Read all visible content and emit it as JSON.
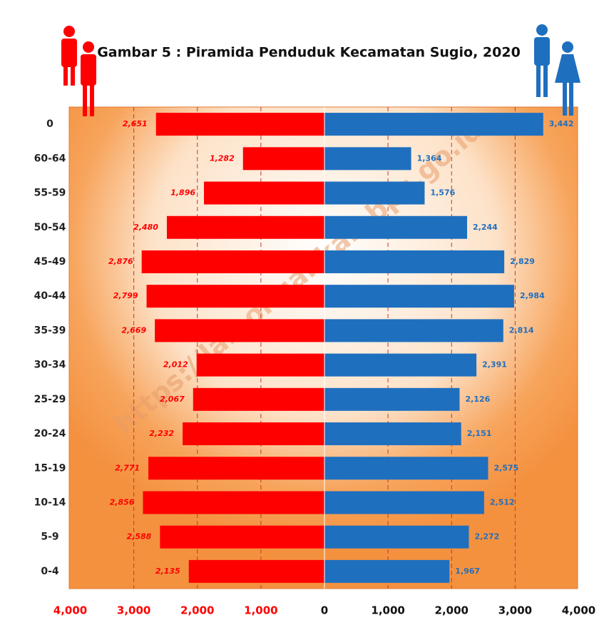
{
  "chart_data": {
    "type": "pyramid",
    "title": "Gambar 5 : Piramida Penduduk Kecamatan Sugio, 2020",
    "watermark": "https://lamongankab.bps.go.id",
    "categories": [
      "0",
      "60-64",
      "55-59",
      "50-54",
      "45-49",
      "40-44",
      "35-39",
      "30-34",
      "25-29",
      "20-24",
      "15-19",
      "10-14",
      "5-9",
      "0-4"
    ],
    "series": [
      {
        "color": "#ff0000",
        "values": [
          2651,
          1282,
          1896,
          2480,
          2876,
          2799,
          2669,
          2012,
          2067,
          2232,
          2771,
          2856,
          2588,
          2135
        ],
        "value_labels": [
          "2,651",
          "1,282",
          "1,896",
          "2,480",
          "2,876",
          "2,799",
          "2,669",
          "2,012",
          "2,067",
          "2,232",
          "2,771",
          "2,856",
          "2,588",
          "2,135"
        ]
      },
      {
        "color": "#1f6fbf",
        "values": [
          3442,
          1364,
          1576,
          2244,
          2829,
          2984,
          2814,
          2391,
          2126,
          2151,
          2575,
          2512,
          2272,
          1967
        ],
        "value_labels": [
          "3,442",
          "1,364",
          "1,576",
          "2,244",
          "2,829",
          "2,984",
          "2,814",
          "2,391",
          "2,126",
          "2,151",
          "2,575",
          "2,512",
          "2,272",
          "1,967"
        ]
      }
    ],
    "xlim": [
      0,
      4000
    ],
    "xticks": [
      0,
      {
        "value": 1000,
        "label": "1,000"
      },
      {
        "value": 2000,
        "label": "2,000"
      },
      {
        "value": 3000,
        "label": "3,000"
      },
      {
        "value": 4000,
        "label": "4,000"
      }
    ],
    "grid": true
  }
}
